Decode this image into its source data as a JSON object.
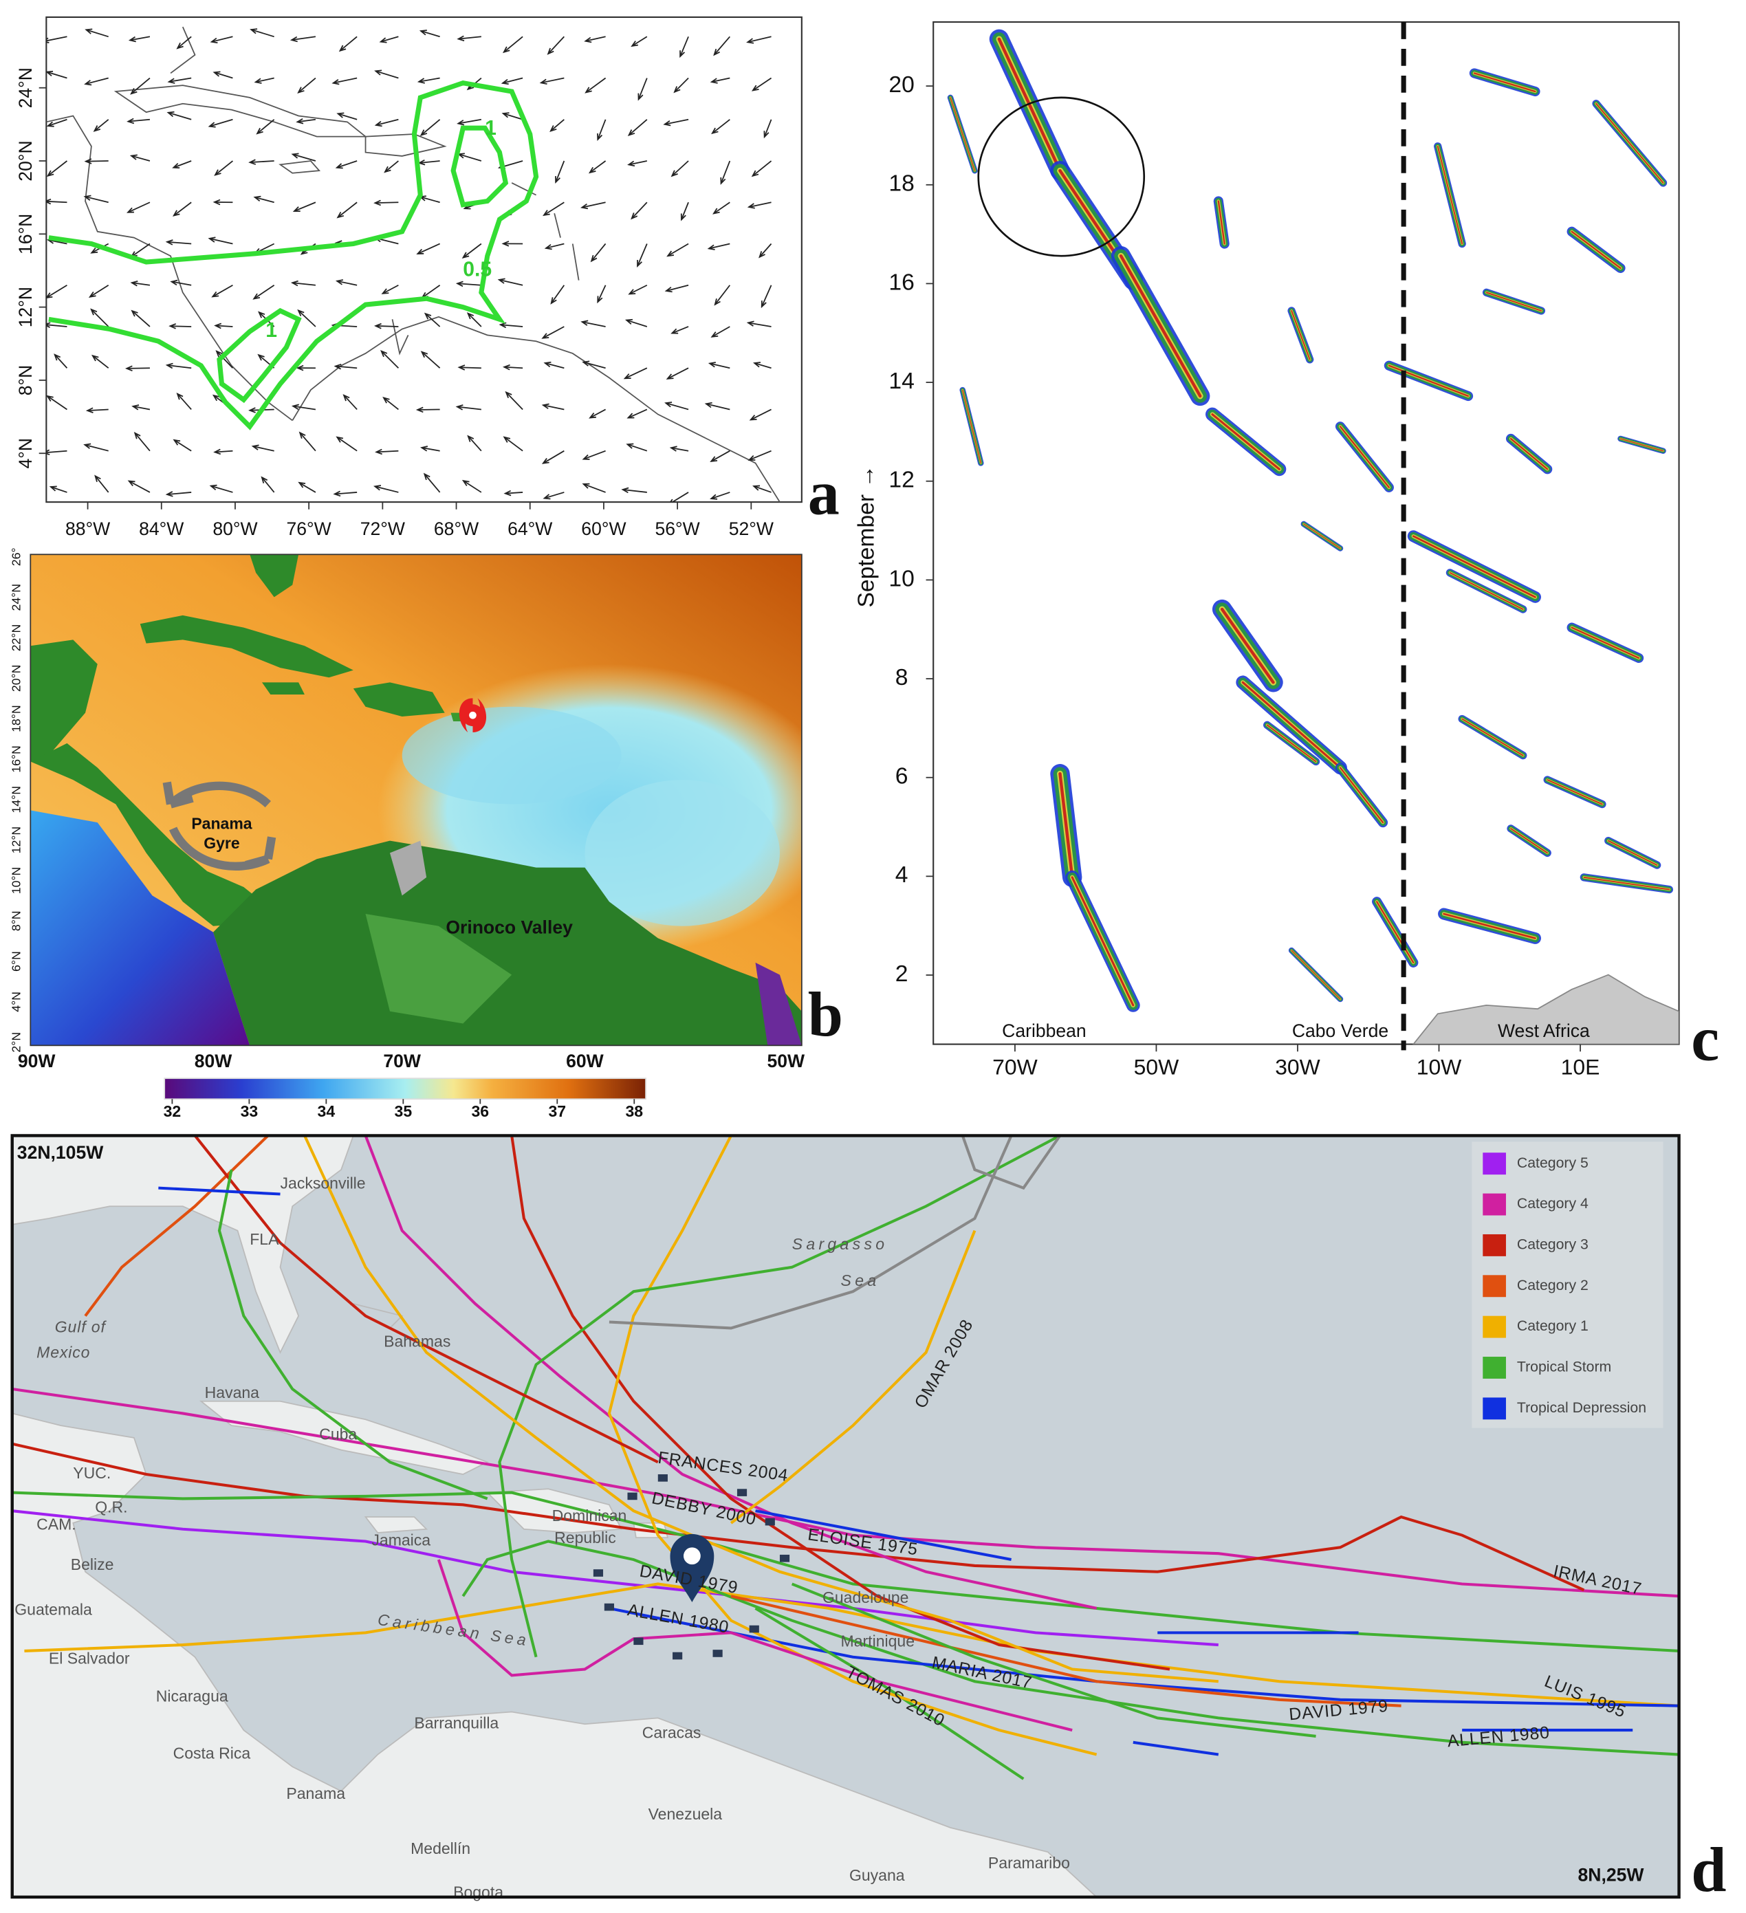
{
  "panel_a": {
    "label": "a",
    "lat_labels": [
      "24°N",
      "20°N",
      "16°N",
      "12°N",
      "8°N",
      "4°N"
    ],
    "lon_labels": [
      "88°W",
      "84°W",
      "80°W",
      "76°W",
      "72°W",
      "68°W",
      "64°W",
      "60°W",
      "56°W",
      "52°W"
    ],
    "contour_labels": [
      "1",
      "0.5",
      "1"
    ]
  },
  "panel_b": {
    "label": "b",
    "lat_labels": [
      "26°",
      "24°N",
      "22°N",
      "20°N",
      "18°N",
      "16°N",
      "14°N",
      "12°N",
      "10°N",
      "8°N",
      "6°N",
      "4°N",
      "2°N"
    ],
    "lon_labels": [
      "90W",
      "80W",
      "70W",
      "60W",
      "50W"
    ],
    "gyre_label": [
      "Panama",
      "Gyre"
    ],
    "valley_label": "Orinoco  Valley",
    "colorbar": {
      "lim": [
        31.9,
        38.15
      ],
      "ticks": [
        32,
        33,
        34,
        35,
        36,
        37,
        38
      ]
    }
  },
  "panel_c": {
    "label": "c",
    "ylabel": "September →",
    "ylim": [
      0.6,
      21
    ],
    "yticks": [
      2,
      4,
      6,
      8,
      10,
      12,
      14,
      16,
      18,
      20
    ],
    "lon_labels": [
      "70W",
      "50W",
      "30W",
      "10W",
      "10E"
    ],
    "regions": [
      "Caribbean",
      "Cabo Verde",
      "West Africa"
    ]
  },
  "panel_d": {
    "label": "d",
    "corner_nw": "32N,105W",
    "corner_se": "8N,25W",
    "legend": [
      {
        "label": "Category 5",
        "color": "#a020f0"
      },
      {
        "label": "Category 4",
        "color": "#d020a0"
      },
      {
        "label": "Category 3",
        "color": "#c82010"
      },
      {
        "label": "Category 2",
        "color": "#e05010"
      },
      {
        "label": "Category 1",
        "color": "#f0b000"
      },
      {
        "label": "Tropical Storm",
        "color": "#40b030"
      },
      {
        "label": "Tropical Depression",
        "color": "#1030e0"
      }
    ],
    "places": [
      "Jacksonville",
      "FLA.",
      "Gulf of",
      "Mexico",
      "Bahamas",
      "Havana",
      "Cuba",
      "YUC.",
      "Q.R.",
      "CAM.",
      "Belize",
      "Guatemala",
      "El Salvador",
      "Nicaragua",
      "Costa Rica",
      "Panama",
      "Barranquilla",
      "Caracas",
      "Venezuela",
      "Medellín",
      "Bogota",
      "Guyana",
      "Paramaribo",
      "Jamaica",
      "Dominican",
      "Republic",
      "Guadeloupe",
      "Martinique",
      "Caribbean Sea",
      "Sargasso",
      "Sea"
    ],
    "storms": [
      "FRANCES 2004",
      "DEBBY 2000",
      "ELOISE 1975",
      "DAVID 1979",
      "ALLEN 1980",
      "IRMA 2017",
      "OMAR 2008",
      "MARIA 2017",
      "TOMAS 2010",
      "LUIS 1995",
      "DAVID 1979",
      "ALLEN 1980"
    ]
  }
}
